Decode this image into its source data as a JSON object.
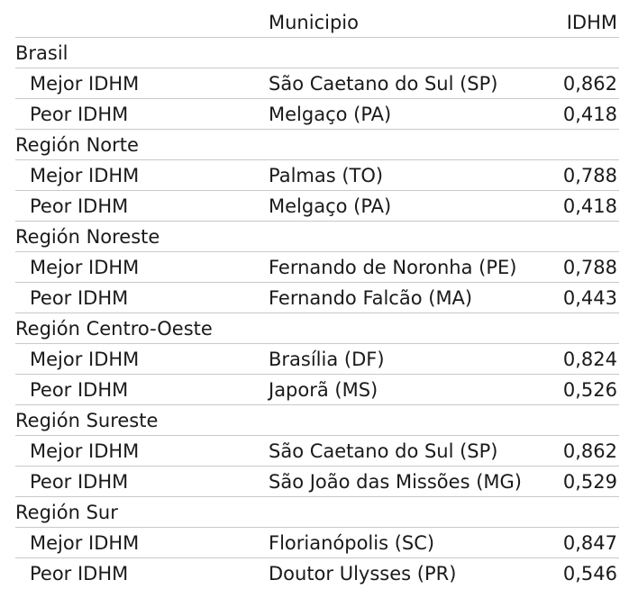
{
  "header": {
    "col_municipio": "Municipio",
    "col_idhm": "IDHM"
  },
  "groups": [
    {
      "region": "Brasil",
      "rows": [
        {
          "label": "Mejor IDHM",
          "municipio": "São Caetano do Sul (SP)",
          "idhm": "0,862"
        },
        {
          "label": "Peor IDHM",
          "municipio": "Melgaço (PA)",
          "idhm": "0,418"
        }
      ]
    },
    {
      "region": "Región Norte",
      "rows": [
        {
          "label": "Mejor IDHM",
          "municipio": "Palmas (TO)",
          "idhm": "0,788"
        },
        {
          "label": "Peor IDHM",
          "municipio": "Melgaço (PA)",
          "idhm": "0,418"
        }
      ]
    },
    {
      "region": "Región Noreste",
      "rows": [
        {
          "label": "Mejor IDHM",
          "municipio": "Fernando de Noronha (PE)",
          "idhm": "0,788"
        },
        {
          "label": "Peor IDHM",
          "municipio": "Fernando Falcão (MA)",
          "idhm": "0,443"
        }
      ]
    },
    {
      "region": "Región Centro-Oeste",
      "rows": [
        {
          "label": "Mejor IDHM",
          "municipio": "Brasília (DF)",
          "idhm": "0,824"
        },
        {
          "label": "Peor IDHM",
          "municipio": "Japorã (MS)",
          "idhm": "0,526"
        }
      ]
    },
    {
      "region": "Región Sureste",
      "rows": [
        {
          "label": "Mejor IDHM",
          "municipio": "São Caetano do Sul (SP)",
          "idhm": "0,862"
        },
        {
          "label": "Peor IDHM",
          "municipio": "São João das Missões (MG)",
          "idhm": "0,529"
        }
      ]
    },
    {
      "region": "Región Sur",
      "rows": [
        {
          "label": "Mejor IDHM",
          "municipio": "Florianópolis (SC)",
          "idhm": "0,847"
        },
        {
          "label": "Peor IDHM",
          "municipio": "Doutor Ulysses (PR)",
          "idhm": "0,546"
        }
      ]
    }
  ]
}
